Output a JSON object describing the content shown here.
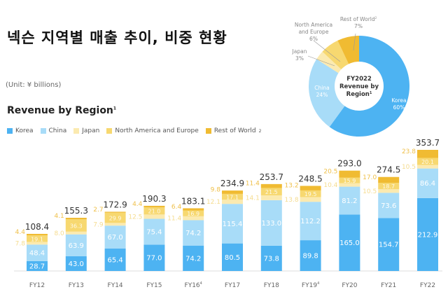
{
  "header": {
    "title": "넥슨 지역별 매출 추이, 비중 현황",
    "unit": "(Unit: ¥ billions)"
  },
  "chart_data": [
    {
      "type": "bar",
      "stacked": true,
      "title": "Revenue by Region",
      "title_sup": "1",
      "categories": [
        "FY12",
        "FY13",
        "FY14",
        "FY15",
        "FY16",
        "FY17",
        "FY18",
        "FY19",
        "FY20",
        "FY21",
        "FY22"
      ],
      "category_sups": [
        "",
        "",
        "",
        "",
        "4",
        "",
        "",
        "4",
        "",
        "",
        ""
      ],
      "series": [
        {
          "name": "Korea",
          "color": "#4db3f2",
          "values": [
            28.7,
            43.0,
            65.4,
            77.0,
            74.2,
            80.5,
            73.8,
            89.8,
            165.0,
            154.7,
            212.9
          ]
        },
        {
          "name": "China",
          "color": "#a8dcf8",
          "values": [
            48.4,
            63.9,
            67.0,
            75.4,
            74.2,
            115.4,
            133.0,
            112.2,
            81.2,
            73.6,
            86.4
          ]
        },
        {
          "name": "Japan",
          "color": "#fbeab0",
          "values": [
            7.8,
            8.0,
            7.9,
            12.5,
            11.4,
            12.1,
            14.1,
            13.8,
            10.4,
            10.5,
            10.5
          ]
        },
        {
          "name": "North America and Europe",
          "color": "#f7d870",
          "values": [
            19.1,
            36.3,
            29.9,
            21.0,
            16.9,
            17.1,
            21.5,
            19.5,
            15.9,
            18.7,
            20.1
          ]
        },
        {
          "name": "Rest of World",
          "name_sup": "2",
          "color": "#f0bb32",
          "values": [
            4.4,
            4.1,
            2.7,
            4.4,
            6.4,
            9.8,
            11.4,
            13.2,
            20.5,
            17.0,
            23.8
          ]
        }
      ],
      "totals": [
        "108.4",
        "155.3",
        "172.9",
        "190.3",
        "183.1",
        "234.9",
        "253.7",
        "248.5",
        "293.0",
        "274.5",
        "353.7"
      ],
      "ylim": [
        0,
        360
      ],
      "legend": "top-left"
    },
    {
      "type": "pie",
      "donut": true,
      "center_label": [
        "FY2022",
        "Revenue by",
        "Region"
      ],
      "center_sup": "1",
      "slices": [
        {
          "name": "Korea",
          "value": 60,
          "label": "60%",
          "color": "#4db3f2"
        },
        {
          "name": "China",
          "value": 24,
          "label": "24%",
          "color": "#a8dcf8"
        },
        {
          "name": "Japan",
          "value": 3,
          "label": "3%",
          "color": "#fbeab0"
        },
        {
          "name": "North America and Europe",
          "value": 6,
          "label": "6%",
          "color": "#f7d870"
        },
        {
          "name": "Rest of World",
          "value": 7,
          "label": "7%",
          "color": "#f0bb32"
        }
      ]
    }
  ]
}
